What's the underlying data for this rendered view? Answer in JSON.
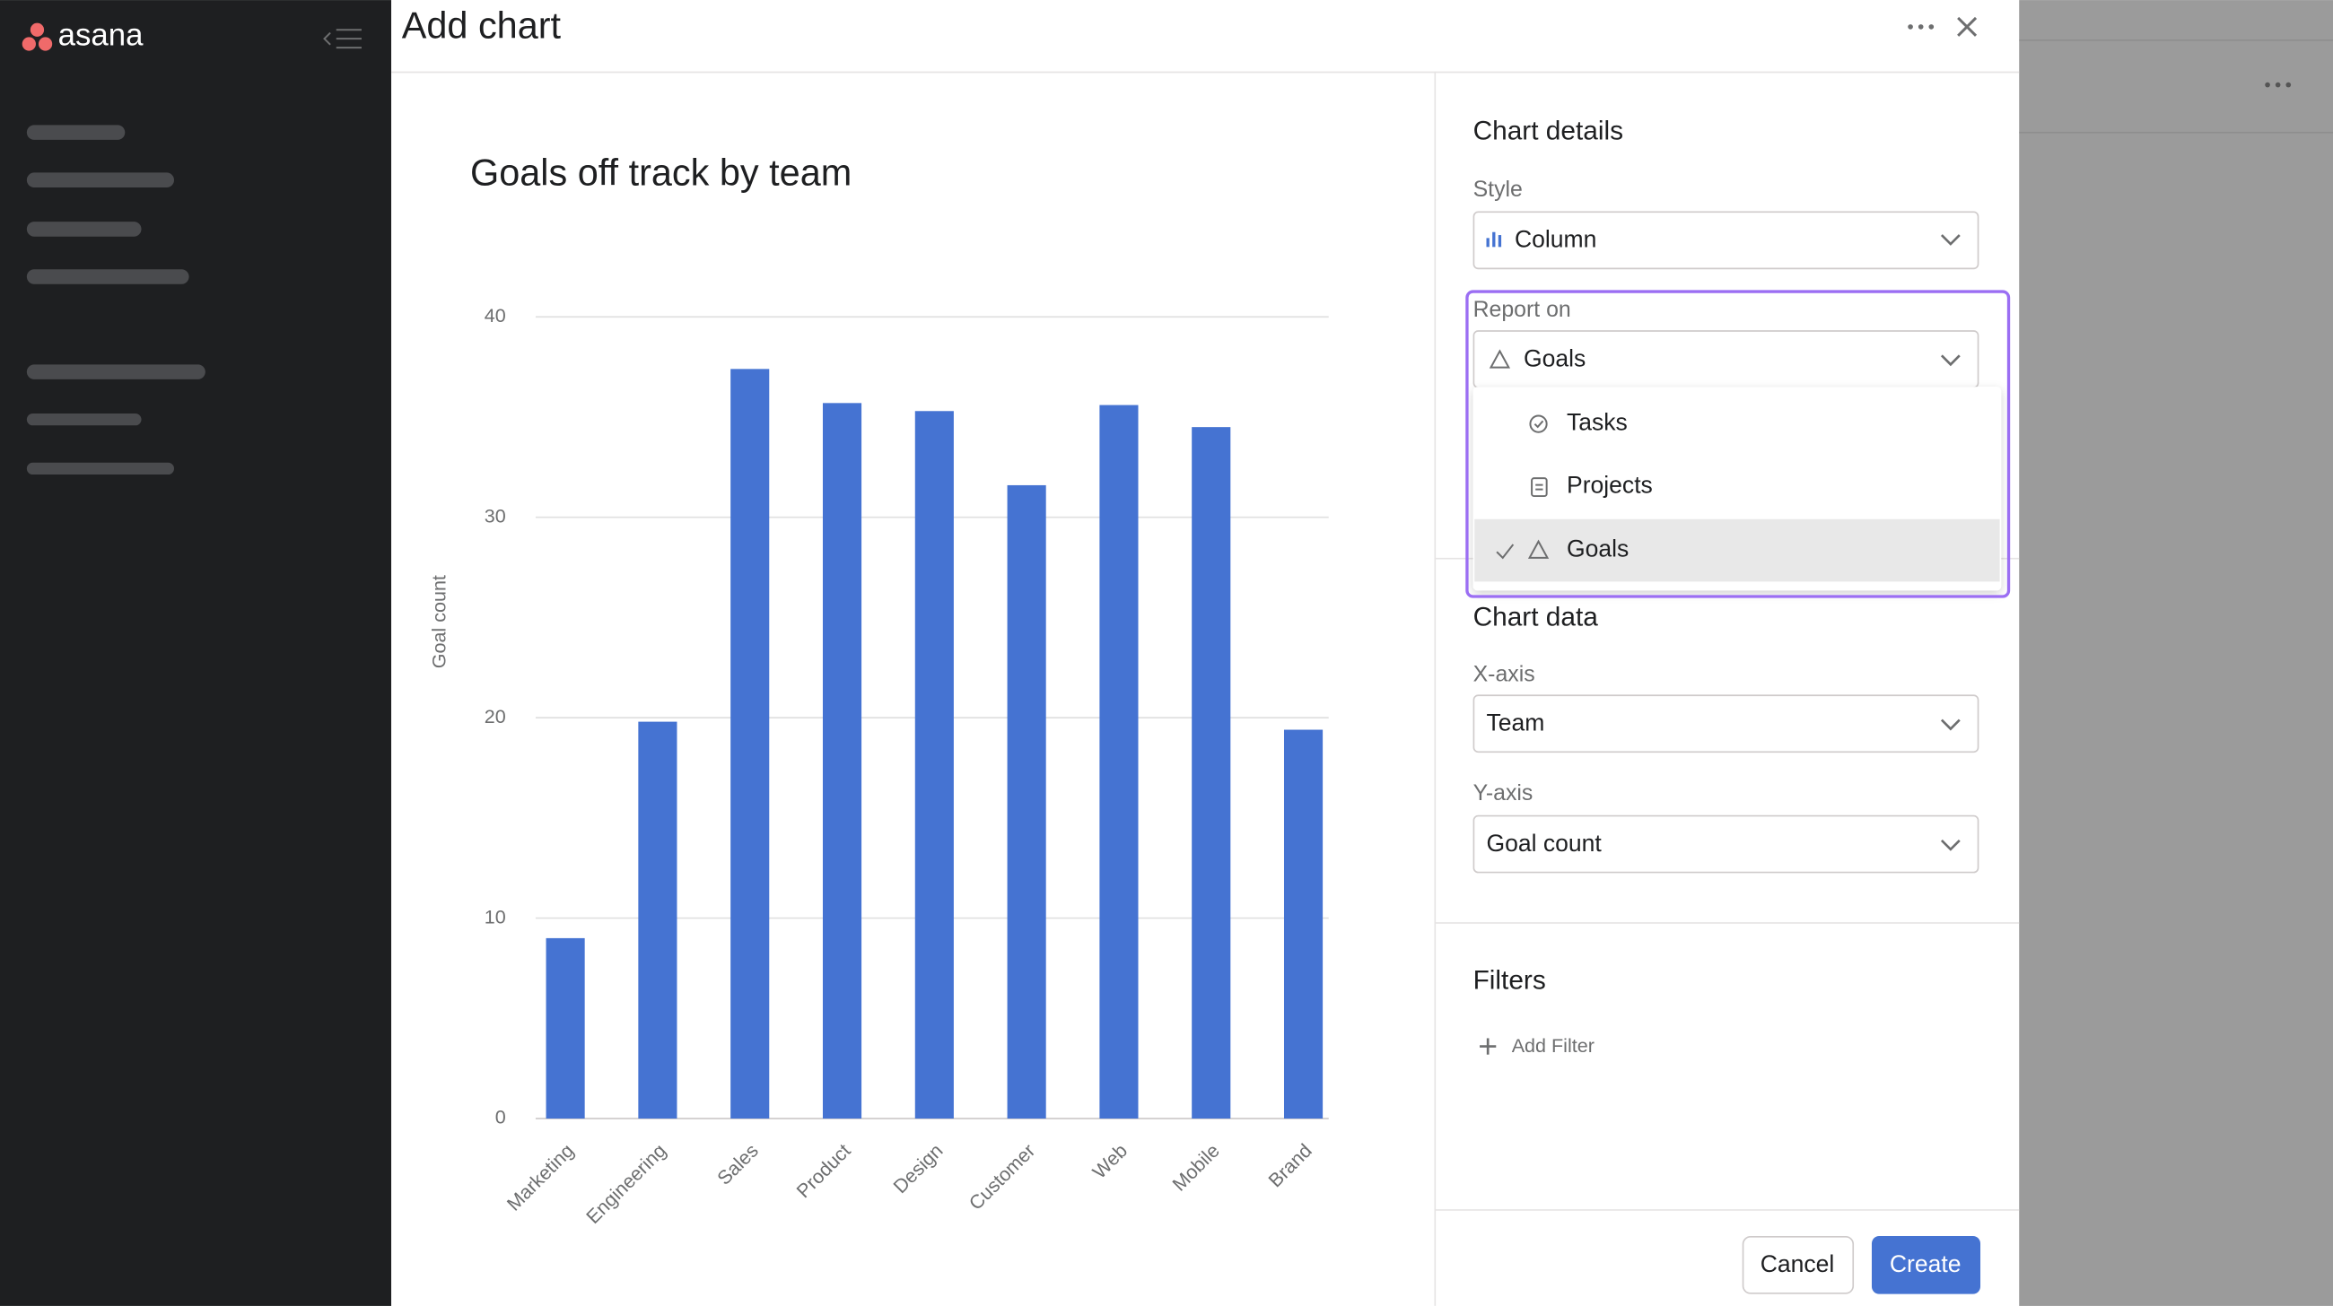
{
  "app": {
    "logo": "asana"
  },
  "dialog": {
    "title": "Add chart"
  },
  "chart_data": {
    "type": "bar",
    "title": "Goals off track by team",
    "y_label": "Goal count",
    "categories": [
      "Marketing",
      "Engineering",
      "Sales",
      "Product",
      "Design",
      "Customer",
      "Web",
      "Mobile",
      "Brand"
    ],
    "values": [
      9,
      19.8,
      37.4,
      35.7,
      35.3,
      31.6,
      35.6,
      34.5,
      19.4
    ],
    "color": "#4573d2",
    "ylim": [
      0,
      40
    ],
    "yticks": [
      0,
      10,
      20,
      30,
      40
    ],
    "grid": true
  },
  "panel": {
    "details_heading": "Chart details",
    "style_label": "Style",
    "style_value": "Column",
    "report_on_label": "Report on",
    "report_on_value": "Goals",
    "options": [
      "Tasks",
      "Projects",
      "Goals"
    ],
    "data_heading": "Chart data",
    "x_axis_label": "X-axis",
    "x_axis_value": "Team",
    "y_axis_label": "Y-axis",
    "y_axis_value": "Goal count",
    "filters_heading": "Filters",
    "add_filter": "Add Filter"
  },
  "footer": {
    "cancel": "Cancel",
    "create": "Create"
  }
}
